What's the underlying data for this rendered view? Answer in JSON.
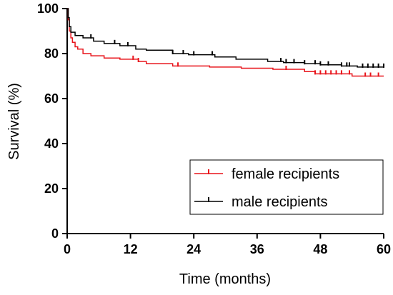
{
  "chart_data": {
    "type": "line",
    "subtype": "kaplan-meier step curves",
    "xlabel": "Time (months)",
    "ylabel": "Survival (%)",
    "xlim": [
      0,
      60
    ],
    "ylim": [
      0,
      100
    ],
    "xticks": [
      0,
      12,
      24,
      36,
      48,
      60
    ],
    "yticks": [
      0,
      20,
      40,
      60,
      80,
      100
    ],
    "grid": false,
    "legend_position": "bottom-right",
    "series": [
      {
        "name": "female recipients",
        "color": "#e8141b",
        "steps": [
          [
            0,
            100
          ],
          [
            0.2,
            95
          ],
          [
            0.4,
            90
          ],
          [
            0.7,
            87
          ],
          [
            1,
            85
          ],
          [
            1.5,
            83
          ],
          [
            2,
            82
          ],
          [
            3,
            80
          ],
          [
            4.5,
            79
          ],
          [
            7,
            78
          ],
          [
            10,
            77.5
          ],
          [
            13.5,
            76.5
          ],
          [
            15,
            75.5
          ],
          [
            20,
            74.5
          ],
          [
            27,
            74
          ],
          [
            33,
            73.5
          ],
          [
            39,
            73
          ],
          [
            45,
            72
          ],
          [
            47,
            71
          ],
          [
            54,
            70
          ],
          [
            60,
            70
          ]
        ],
        "censor_x": [
          12.5,
          13.5,
          21,
          41.5,
          47,
          48,
          49,
          50,
          51,
          52,
          53.5,
          56.5,
          57.5,
          59
        ]
      },
      {
        "name": "male recipients",
        "color": "#000000",
        "steps": [
          [
            0,
            100
          ],
          [
            0.2,
            96
          ],
          [
            0.4,
            92
          ],
          [
            0.7,
            89.5
          ],
          [
            1.5,
            88
          ],
          [
            3,
            87
          ],
          [
            5,
            85.5
          ],
          [
            7,
            84.5
          ],
          [
            10,
            83.5
          ],
          [
            13,
            82
          ],
          [
            15,
            81.5
          ],
          [
            20,
            80
          ],
          [
            23,
            79.5
          ],
          [
            28,
            78.5
          ],
          [
            32,
            77.5
          ],
          [
            38,
            76.5
          ],
          [
            41,
            76
          ],
          [
            45,
            75.5
          ],
          [
            48,
            75
          ],
          [
            52,
            74.5
          ],
          [
            55,
            74
          ],
          [
            60,
            74
          ]
        ],
        "censor_x": [
          4.5,
          9,
          11.5,
          20,
          22,
          24,
          27.5,
          40.5,
          41.5,
          43,
          45,
          47,
          48,
          49.5,
          52,
          53,
          53.5,
          56,
          57,
          58,
          59,
          60
        ]
      }
    ]
  }
}
